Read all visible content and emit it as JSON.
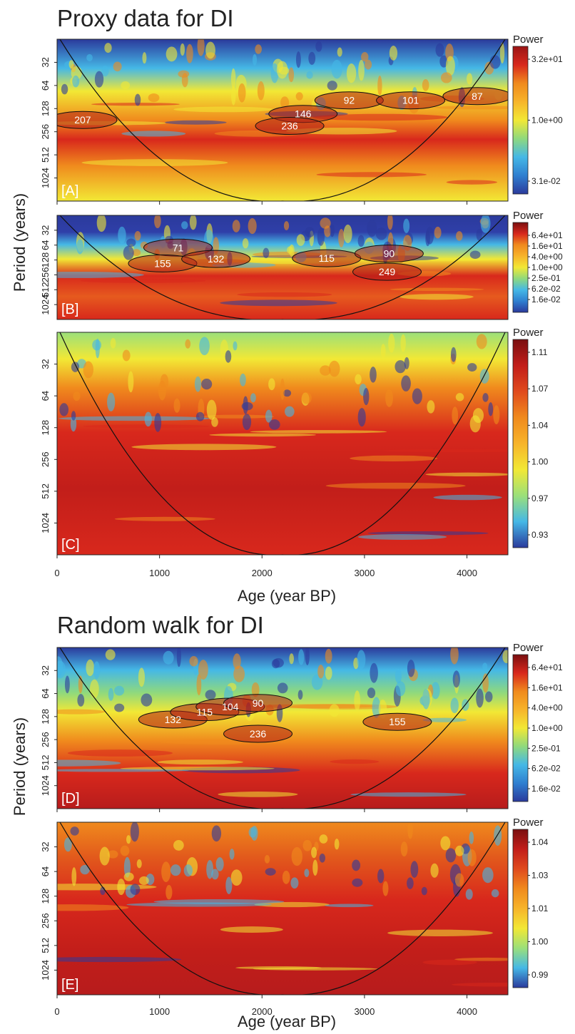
{
  "sections": [
    {
      "title": "Proxy data for DI"
    },
    {
      "title": "Random walk for DI"
    }
  ],
  "axes": {
    "ylabel": "Period (years)",
    "xlabel": "Age (year BP)",
    "y_ticks": [
      "32",
      "64",
      "128",
      "256",
      "512",
      "1024"
    ],
    "x_ticks": [
      "0",
      "1000",
      "2000",
      "3000",
      "4000"
    ]
  },
  "colorbar_title": "Power",
  "colors": {
    "low": "#2b3a9c",
    "mid_low": "#45b8e6",
    "mid": "#f2e835",
    "mid_high": "#f08a1d",
    "high": "#d8281c",
    "max": "#7a0f10",
    "contour": "#111111"
  },
  "chart_data": [
    {
      "type": "heatmap",
      "panel": "[A]",
      "title": "Proxy data for DI",
      "xlabel": "Age (year BP)",
      "ylabel": "Period (years)",
      "xlim": [
        0,
        4400
      ],
      "y_scale": "log2",
      "ylim": [
        16,
        2048
      ],
      "colorbar": {
        "label": "Power",
        "ticks": [
          "3.2e+01",
          "1.0e+00",
          "3.1e-02"
        ]
      },
      "cone_of_influence": true,
      "significant_periods": [
        {
          "label": "207",
          "x": 250,
          "period": 180
        },
        {
          "label": "146",
          "x": 2400,
          "period": 150
        },
        {
          "label": "236",
          "x": 2270,
          "period": 215
        },
        {
          "label": "92",
          "x": 2850,
          "period": 100
        },
        {
          "label": "101",
          "x": 3450,
          "period": 100
        },
        {
          "label": "87",
          "x": 4100,
          "period": 88
        }
      ]
    },
    {
      "type": "heatmap",
      "panel": "[B]",
      "xlim": [
        0,
        4400
      ],
      "y_scale": "log2",
      "ylim": [
        16,
        2048
      ],
      "colorbar": {
        "label": "Power",
        "ticks": [
          "6.4e+01",
          "1.6e+01",
          "4.0e+00",
          "1.0e+00",
          "2.5e-01",
          "6.2e-02",
          "1.6e-02"
        ]
      },
      "cone_of_influence": true,
      "significant_periods": [
        {
          "label": "71",
          "x": 1180,
          "period": 72
        },
        {
          "label": "155",
          "x": 1030,
          "period": 150
        },
        {
          "label": "132",
          "x": 1550,
          "period": 122
        },
        {
          "label": "115",
          "x": 2630,
          "period": 118
        },
        {
          "label": "90",
          "x": 3240,
          "period": 95
        },
        {
          "label": "249",
          "x": 3220,
          "period": 222
        }
      ]
    },
    {
      "type": "heatmap",
      "panel": "[C]",
      "xlim": [
        0,
        4400
      ],
      "y_scale": "log2",
      "ylim": [
        16,
        2048
      ],
      "colorbar": {
        "label": "Power",
        "ticks": [
          "1.11",
          "1.07",
          "1.04",
          "1.00",
          "0.97",
          "0.93"
        ]
      },
      "cone_of_influence": true,
      "significant_periods": []
    },
    {
      "type": "heatmap",
      "panel": "[D]",
      "title": "Random walk for DI",
      "xlim": [
        0,
        4400
      ],
      "y_scale": "log2",
      "ylim": [
        16,
        2048
      ],
      "colorbar": {
        "label": "Power",
        "ticks": [
          "6.4e+01",
          "1.6e+01",
          "4.0e+00",
          "1.0e+00",
          "2.5e-01",
          "6.2e-02",
          "1.6e-02"
        ]
      },
      "cone_of_influence": true,
      "significant_periods": [
        {
          "label": "132",
          "x": 1130,
          "period": 140
        },
        {
          "label": "115",
          "x": 1440,
          "period": 112
        },
        {
          "label": "104",
          "x": 1690,
          "period": 95
        },
        {
          "label": "90",
          "x": 1960,
          "period": 85
        },
        {
          "label": "236",
          "x": 1960,
          "period": 215
        },
        {
          "label": "155",
          "x": 3320,
          "period": 150
        }
      ]
    },
    {
      "type": "heatmap",
      "panel": "[E]",
      "xlabel": "Age (year BP)",
      "xlim": [
        0,
        4400
      ],
      "y_scale": "log2",
      "ylim": [
        16,
        2048
      ],
      "colorbar": {
        "label": "Power",
        "ticks": [
          "1.04",
          "1.03",
          "1.01",
          "1.00",
          "0.99"
        ]
      },
      "cone_of_influence": true,
      "significant_periods": []
    }
  ]
}
